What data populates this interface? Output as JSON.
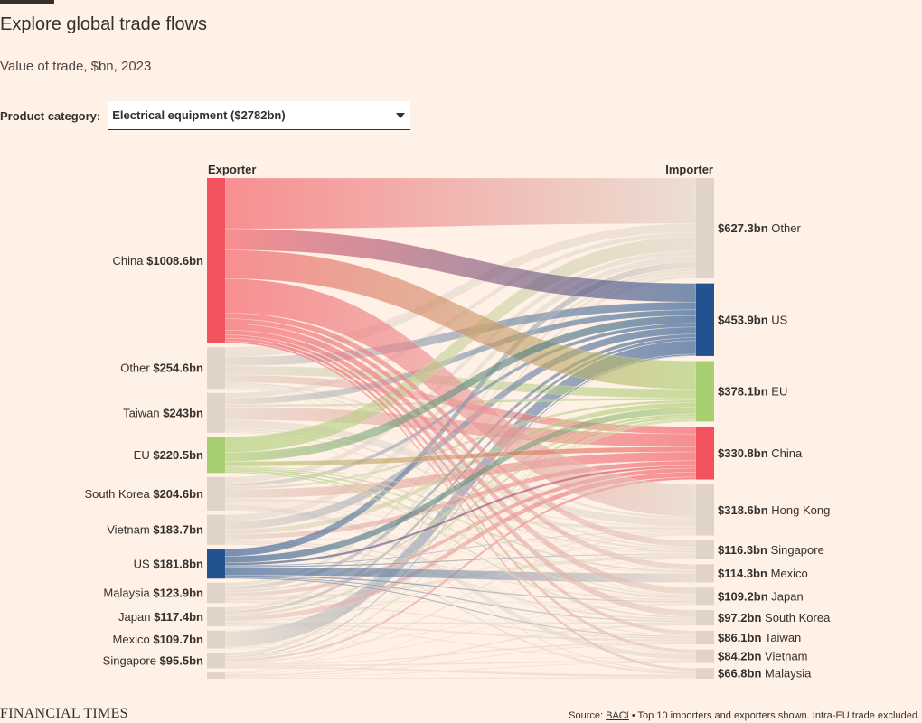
{
  "header": {
    "title": "Explore global trade flows",
    "subtitle": "Value of trade, $bn, 2023"
  },
  "filter": {
    "label": "Product category:",
    "selected": "Electrical equipment ($2782bn)"
  },
  "footer": {
    "logo": "FINANCIAL TIMES",
    "source_prefix": "Source: ",
    "source_link": "BACI",
    "source_suffix": " • Top 10 importers and exporters shown. Intra-EU trade excluded."
  },
  "colors": {
    "china": "#f2525e",
    "us": "#23538f",
    "eu": "#a8cf6f",
    "neutral": "#e0d4c8",
    "background": "#fff1e5"
  },
  "chart_data": {
    "type": "sankey",
    "units": "$bn",
    "left_header": "Exporter",
    "right_header": "Importer",
    "exporters": [
      {
        "name": "China",
        "label": "$1008.6bn",
        "value": 1008.6,
        "color": "#f2525e"
      },
      {
        "name": "Other",
        "label": "$254.6bn",
        "value": 254.6,
        "color": "#e0d4c8"
      },
      {
        "name": "Taiwan",
        "label": "$243bn",
        "value": 243,
        "color": "#e0d4c8"
      },
      {
        "name": "EU",
        "label": "$220.5bn",
        "value": 220.5,
        "color": "#a8cf6f"
      },
      {
        "name": "South Korea",
        "label": "$204.6bn",
        "value": 204.6,
        "color": "#e0d4c8"
      },
      {
        "name": "Vietnam",
        "label": "$183.7bn",
        "value": 183.7,
        "color": "#e0d4c8"
      },
      {
        "name": "US",
        "label": "$181.8bn",
        "value": 181.8,
        "color": "#23538f"
      },
      {
        "name": "Malaysia",
        "label": "$123.9bn",
        "value": 123.9,
        "color": "#e0d4c8"
      },
      {
        "name": "Japan",
        "label": "$117.4bn",
        "value": 117.4,
        "color": "#e0d4c8"
      },
      {
        "name": "Mexico",
        "label": "$109.7bn",
        "value": 109.7,
        "color": "#e0d4c8"
      },
      {
        "name": "Singapore",
        "label": "$95.5bn",
        "value": 95.5,
        "color": "#e0d4c8"
      },
      {
        "name": "",
        "label": "",
        "value": 38.3,
        "color": "#e0d4c8"
      }
    ],
    "importers": [
      {
        "name": "Other",
        "label": "$627.3bn",
        "value": 627.3,
        "color": "#e0d4c8"
      },
      {
        "name": "US",
        "label": "$453.9bn",
        "value": 453.9,
        "color": "#23538f"
      },
      {
        "name": "EU",
        "label": "$378.1bn",
        "value": 378.1,
        "color": "#a8cf6f"
      },
      {
        "name": "China",
        "label": "$330.8bn",
        "value": 330.8,
        "color": "#f2525e"
      },
      {
        "name": "Hong Kong",
        "label": "$318.6bn",
        "value": 318.6,
        "color": "#e0d4c8"
      },
      {
        "name": "Singapore",
        "label": "$116.3bn",
        "value": 116.3,
        "color": "#e0d4c8"
      },
      {
        "name": "Mexico",
        "label": "$114.3bn",
        "value": 114.3,
        "color": "#e0d4c8"
      },
      {
        "name": "Japan",
        "label": "$109.2bn",
        "value": 109.2,
        "color": "#e0d4c8"
      },
      {
        "name": "South Korea",
        "label": "$97.2bn",
        "value": 97.2,
        "color": "#e0d4c8"
      },
      {
        "name": "Taiwan",
        "label": "$86.1bn",
        "value": 86.1,
        "color": "#e0d4c8"
      },
      {
        "name": "Vietnam",
        "label": "$84.2bn",
        "value": 84.2,
        "color": "#e0d4c8"
      },
      {
        "name": "Malaysia",
        "label": "$66.8bn",
        "value": 66.8,
        "color": "#e0d4c8"
      }
    ],
    "flows": [
      {
        "from": "China",
        "to": "Other",
        "value": 310
      },
      {
        "from": "China",
        "to": "US",
        "value": 130
      },
      {
        "from": "China",
        "to": "EU",
        "value": 175
      },
      {
        "from": "China",
        "to": "Hong Kong",
        "value": 210
      },
      {
        "from": "China",
        "to": "Singapore",
        "value": 35
      },
      {
        "from": "China",
        "to": "Mexico",
        "value": 30
      },
      {
        "from": "China",
        "to": "Japan",
        "value": 40
      },
      {
        "from": "China",
        "to": "South Korea",
        "value": 30
      },
      {
        "from": "China",
        "to": "Taiwan",
        "value": 18
      },
      {
        "from": "China",
        "to": "Vietnam",
        "value": 20
      },
      {
        "from": "China",
        "to": "Malaysia",
        "value": 10.6
      },
      {
        "from": "Other",
        "to": "Other",
        "value": 60
      },
      {
        "from": "Other",
        "to": "US",
        "value": 55
      },
      {
        "from": "Other",
        "to": "EU",
        "value": 55
      },
      {
        "from": "Other",
        "to": "China",
        "value": 45
      },
      {
        "from": "Other",
        "to": "Hong Kong",
        "value": 15
      },
      {
        "from": "Other",
        "to": "Singapore",
        "value": 10
      },
      {
        "from": "Other",
        "to": "Mexico",
        "value": 4.6
      },
      {
        "from": "Other",
        "to": "Japan",
        "value": 5
      },
      {
        "from": "Other",
        "to": "Vietnam",
        "value": 5
      },
      {
        "from": "Taiwan",
        "to": "Other",
        "value": 30
      },
      {
        "from": "Taiwan",
        "to": "US",
        "value": 40
      },
      {
        "from": "Taiwan",
        "to": "EU",
        "value": 15
      },
      {
        "from": "Taiwan",
        "to": "China",
        "value": 80
      },
      {
        "from": "Taiwan",
        "to": "Hong Kong",
        "value": 50
      },
      {
        "from": "Taiwan",
        "to": "Singapore",
        "value": 13
      },
      {
        "from": "Taiwan",
        "to": "Japan",
        "value": 10
      },
      {
        "from": "Taiwan",
        "to": "Vietnam",
        "value": 5
      },
      {
        "from": "EU",
        "to": "Other",
        "value": 95
      },
      {
        "from": "EU",
        "to": "US",
        "value": 55
      },
      {
        "from": "EU",
        "to": "China",
        "value": 30
      },
      {
        "from": "EU",
        "to": "Hong Kong",
        "value": 5
      },
      {
        "from": "EU",
        "to": "Mexico",
        "value": 10
      },
      {
        "from": "EU",
        "to": "Japan",
        "value": 10
      },
      {
        "from": "EU",
        "to": "South Korea",
        "value": 8
      },
      {
        "from": "EU",
        "to": "Singapore",
        "value": 7.5
      },
      {
        "from": "South Korea",
        "to": "Other",
        "value": 35
      },
      {
        "from": "South Korea",
        "to": "US",
        "value": 25
      },
      {
        "from": "South Korea",
        "to": "EU",
        "value": 15
      },
      {
        "from": "South Korea",
        "to": "China",
        "value": 55
      },
      {
        "from": "South Korea",
        "to": "Hong Kong",
        "value": 20
      },
      {
        "from": "South Korea",
        "to": "Vietnam",
        "value": 30
      },
      {
        "from": "South Korea",
        "to": "Mexico",
        "value": 5
      },
      {
        "from": "South Korea",
        "to": "Japan",
        "value": 5
      },
      {
        "from": "South Korea",
        "to": "Singapore",
        "value": 4.6
      },
      {
        "from": "South Korea",
        "to": "Taiwan",
        "value": 5
      },
      {
        "from": "South Korea",
        "to": "Malaysia",
        "value": 5
      },
      {
        "from": "Vietnam",
        "to": "Other",
        "value": 40
      },
      {
        "from": "Vietnam",
        "to": "US",
        "value": 50
      },
      {
        "from": "Vietnam",
        "to": "EU",
        "value": 30
      },
      {
        "from": "Vietnam",
        "to": "China",
        "value": 30
      },
      {
        "from": "Vietnam",
        "to": "Hong Kong",
        "value": 5
      },
      {
        "from": "Vietnam",
        "to": "Japan",
        "value": 10
      },
      {
        "from": "Vietnam",
        "to": "South Korea",
        "value": 10
      },
      {
        "from": "Vietnam",
        "to": "Malaysia",
        "value": 8.7
      },
      {
        "from": "US",
        "to": "Other",
        "value": 45
      },
      {
        "from": "US",
        "to": "EU",
        "value": 40
      },
      {
        "from": "US",
        "to": "China",
        "value": 15
      },
      {
        "from": "US",
        "to": "Mexico",
        "value": 50
      },
      {
        "from": "US",
        "to": "Japan",
        "value": 8
      },
      {
        "from": "US",
        "to": "Hong Kong",
        "value": 5
      },
      {
        "from": "US",
        "to": "South Korea",
        "value": 6
      },
      {
        "from": "US",
        "to": "Taiwan",
        "value": 6
      },
      {
        "from": "US",
        "to": "Singapore",
        "value": 6.8
      },
      {
        "from": "Malaysia",
        "to": "Other",
        "value": 20
      },
      {
        "from": "Malaysia",
        "to": "US",
        "value": 25
      },
      {
        "from": "Malaysia",
        "to": "EU",
        "value": 15
      },
      {
        "from": "Malaysia",
        "to": "China",
        "value": 25
      },
      {
        "from": "Malaysia",
        "to": "Singapore",
        "value": 20
      },
      {
        "from": "Malaysia",
        "to": "Taiwan",
        "value": 8
      },
      {
        "from": "Malaysia",
        "to": "Hong Kong",
        "value": 5
      },
      {
        "from": "Malaysia",
        "to": "Japan",
        "value": 5.9
      },
      {
        "from": "Japan",
        "to": "Other",
        "value": 20
      },
      {
        "from": "Japan",
        "to": "US",
        "value": 20
      },
      {
        "from": "Japan",
        "to": "EU",
        "value": 15
      },
      {
        "from": "Japan",
        "to": "China",
        "value": 30
      },
      {
        "from": "Japan",
        "to": "Hong Kong",
        "value": 8
      },
      {
        "from": "Japan",
        "to": "Taiwan",
        "value": 10
      },
      {
        "from": "Japan",
        "to": "South Korea",
        "value": 8
      },
      {
        "from": "Japan",
        "to": "Vietnam",
        "value": 6.4
      },
      {
        "from": "Mexico",
        "to": "Other",
        "value": 5
      },
      {
        "from": "Mexico",
        "to": "US",
        "value": 95
      },
      {
        "from": "Mexico",
        "to": "EU",
        "value": 5
      },
      {
        "from": "Mexico",
        "to": "Japan",
        "value": 4.7
      },
      {
        "from": "Singapore",
        "to": "Other",
        "value": 20
      },
      {
        "from": "Singapore",
        "to": "US",
        "value": 10
      },
      {
        "from": "Singapore",
        "to": "EU",
        "value": 8
      },
      {
        "from": "Singapore",
        "to": "China",
        "value": 15
      },
      {
        "from": "Singapore",
        "to": "Hong Kong",
        "value": 10
      },
      {
        "from": "Singapore",
        "to": "Malaysia",
        "value": 10
      },
      {
        "from": "Singapore",
        "to": "Vietnam",
        "value": 10
      },
      {
        "from": "Singapore",
        "to": "Japan",
        "value": 5
      },
      {
        "from": "Singapore",
        "to": "Taiwan",
        "value": 7.5
      },
      {
        "from": "",
        "to": "Other",
        "value": 3
      },
      {
        "from": "",
        "to": "US",
        "value": 3
      },
      {
        "from": "",
        "to": "EU",
        "value": 5
      },
      {
        "from": "",
        "to": "Malaysia",
        "value": 5
      },
      {
        "from": "",
        "to": "Vietnam",
        "value": 5
      },
      {
        "from": "",
        "to": "South Korea",
        "value": 8
      },
      {
        "from": "",
        "to": "Taiwan",
        "value": 5
      },
      {
        "from": "",
        "to": "Singapore",
        "value": 4.3
      }
    ]
  }
}
